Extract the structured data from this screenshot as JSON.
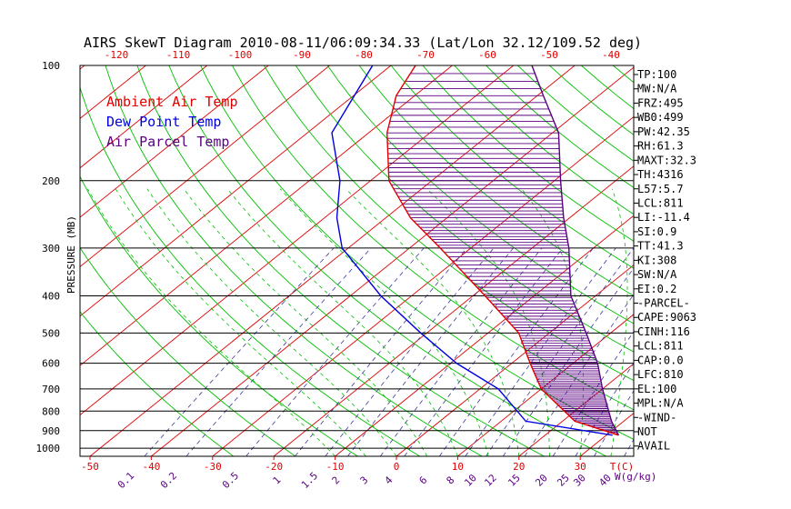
{
  "chart_data": {
    "type": "line",
    "title": "AIRS SkewT Diagram 2010-08-11/06:09:34.33 (Lat/Lon 32.12/109.52 deg)",
    "ylabel": "PRESSURE (MB)",
    "xlabel": "T(C)",
    "mixing_ratio_label": "W(g/kg)",
    "pressure_ticks": [
      100,
      200,
      300,
      400,
      500,
      600,
      700,
      800,
      900,
      1000
    ],
    "bottom_temp_ticks": [
      -50,
      -40,
      -30,
      -20,
      -10,
      0,
      10,
      20,
      30
    ],
    "top_temp_ticks": [
      -120,
      -110,
      -100,
      -90,
      -80,
      -70,
      -60,
      -50,
      -40
    ],
    "mixing_ratio_ticks": [
      "0.1",
      "0.2",
      "0.5",
      "1",
      "1.5",
      "2",
      "3",
      "4",
      "6",
      "8",
      "10",
      "12",
      "15",
      "20",
      "25",
      "30",
      "40"
    ],
    "legend": [
      {
        "name": "Ambient Air Temp",
        "color": "#e00000"
      },
      {
        "name": "Dew Point Temp",
        "color": "#0000e0"
      },
      {
        "name": "Air Parcel Temp",
        "color": "#5a0080"
      }
    ],
    "colors": {
      "isotherm": "#e00000",
      "dry_adiabat": "#00c000",
      "mixing_ratio": "#00a000",
      "isobar": "#000000",
      "hatch": "#5a0080"
    },
    "series": [
      {
        "name": "Ambient Air Temp",
        "points": [
          [
            100,
            -76
          ],
          [
            120,
            -73
          ],
          [
            150,
            -67
          ],
          [
            200,
            -57
          ],
          [
            250,
            -46
          ],
          [
            300,
            -35
          ],
          [
            400,
            -18
          ],
          [
            500,
            -5
          ],
          [
            600,
            3
          ],
          [
            700,
            10
          ],
          [
            850,
            22
          ],
          [
            925,
            32
          ]
        ]
      },
      {
        "name": "Dew Point Temp",
        "points": [
          [
            100,
            -83
          ],
          [
            150,
            -76
          ],
          [
            200,
            -65
          ],
          [
            250,
            -58
          ],
          [
            300,
            -51
          ],
          [
            400,
            -35
          ],
          [
            500,
            -21
          ],
          [
            600,
            -9
          ],
          [
            700,
            3
          ],
          [
            850,
            14
          ],
          [
            925,
            31
          ]
        ]
      },
      {
        "name": "Air Parcel Temp",
        "points": [
          [
            100,
            -57
          ],
          [
            120,
            -49
          ],
          [
            150,
            -39
          ],
          [
            200,
            -29
          ],
          [
            250,
            -21
          ],
          [
            300,
            -14
          ],
          [
            400,
            -4
          ],
          [
            500,
            6
          ],
          [
            600,
            14
          ],
          [
            700,
            20
          ],
          [
            850,
            28
          ],
          [
            925,
            32
          ]
        ]
      }
    ],
    "index_labels": [
      "TP:100",
      "MW:N/A",
      "FRZ:495",
      "WB0:499",
      "PW:42.35",
      "RH:61.3",
      "MAXT:32.3",
      "TH:4316",
      "L57:5.7",
      "LCL:811",
      "LI:-11.4",
      "SI:0.9",
      "TT:41.3",
      "KI:308",
      "SW:N/A",
      "EI:0.2",
      "-PARCEL-",
      "CAPE:9063",
      "CINH:116",
      "LCL:811",
      "CAP:0.0",
      "LFC:810",
      "EL:100",
      "MPL:N/A",
      "-WIND-",
      "NOT",
      "AVAIL"
    ]
  }
}
